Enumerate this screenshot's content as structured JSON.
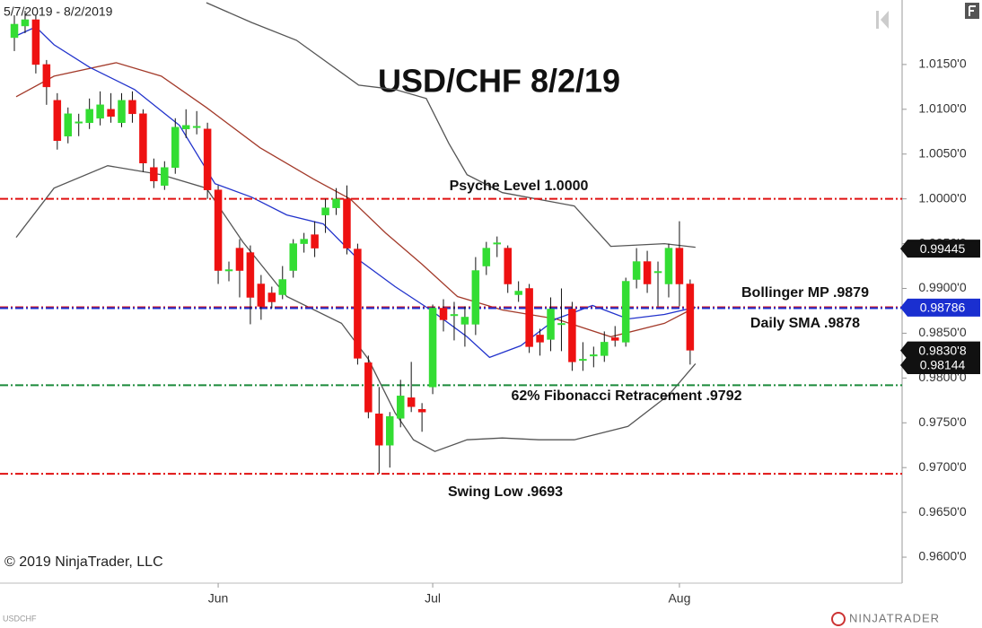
{
  "chart_data": {
    "type": "candlestick",
    "title": "USD/CHF 8/2/19",
    "date_range": "5/7/2019 - 8/2/2019",
    "xlim": [
      -1.34,
      82.76
    ],
    "xticks": [
      {
        "value": 19,
        "label": "Jun"
      },
      {
        "value": 39,
        "label": "Jul"
      },
      {
        "value": 62,
        "label": "Aug"
      }
    ],
    "ylim": [
      0.9571,
      1.0222
    ],
    "yticks": [
      {
        "value": 0.96,
        "label": "0.9600'0"
      },
      {
        "value": 0.965,
        "label": "0.9650'0"
      },
      {
        "value": 0.97,
        "label": "0.9700'0"
      },
      {
        "value": 0.975,
        "label": "0.9750'0"
      },
      {
        "value": 0.98,
        "label": "0.9800'0"
      },
      {
        "value": 0.985,
        "label": "0.9850'0"
      },
      {
        "value": 0.99,
        "label": "0.9900'0"
      },
      {
        "value": 0.995,
        "label": "0.9950'0"
      },
      {
        "value": 1.0,
        "label": "1.0000'0"
      },
      {
        "value": 1.005,
        "label": "1.0050'0"
      },
      {
        "value": 1.01,
        "label": "1.0100'0"
      },
      {
        "value": 1.015,
        "label": "1.0150'0"
      }
    ],
    "up_color": "#33dd33",
    "down_color": "#ee1111",
    "open": [
      1.018,
      1.0193,
      1.02,
      1.015,
      1.011,
      1.007,
      1.0085,
      1.0085,
      1.009,
      1.01,
      1.0085,
      1.011,
      1.0095,
      1.0035,
      1.0015,
      1.0035,
      1.0078,
      1.008,
      1.0078,
      1.001,
      0.992,
      0.9945,
      0.994,
      0.9905,
      0.9895,
      0.9893,
      0.992,
      0.995,
      0.996,
      0.9982,
      0.999,
      1.0,
      0.9944,
      0.9817,
      0.976,
      0.9725,
      0.9755,
      0.9778,
      0.9765,
      0.979,
      0.9878,
      0.987,
      0.986,
      0.986,
      0.9925,
      0.995,
      0.9945,
      0.9893,
      0.99,
      0.9848,
      0.9843,
      0.986,
      0.9877,
      0.982,
      0.9825,
      0.9825,
      0.9845,
      0.984,
      0.991,
      0.993,
      0.9918,
      0.9905,
      0.9945,
      0.9905
    ],
    "high": [
      1.0205,
      1.021,
      1.0205,
      1.0155,
      1.0118,
      1.0102,
      1.0095,
      1.0112,
      1.012,
      1.0118,
      1.0118,
      1.012,
      1.01,
      1.0045,
      1.0042,
      1.009,
      1.01,
      1.0098,
      1.0085,
      1.0015,
      0.993,
      0.9955,
      0.9948,
      0.9915,
      0.9902,
      0.9925,
      0.9955,
      0.9962,
      0.9975,
      1.0,
      1.0012,
      1.0015,
      0.995,
      0.9825,
      0.979,
      0.9762,
      0.9798,
      0.9818,
      0.9772,
      0.9882,
      0.9888,
      0.9885,
      0.988,
      0.9935,
      0.9952,
      0.9958,
      0.9948,
      0.9908,
      0.9905,
      0.9855,
      0.989,
      0.99,
      0.9885,
      0.984,
      0.9835,
      0.9852,
      0.9858,
      0.9912,
      0.9945,
      0.9942,
      0.993,
      0.995,
      0.9975,
      0.991
    ],
    "low": [
      1.0165,
      1.0185,
      1.014,
      1.0105,
      1.0055,
      1.0062,
      1.007,
      1.0078,
      1.0082,
      1.0085,
      1.008,
      1.0085,
      1.003,
      1.0012,
      1.001,
      1.0028,
      1.0068,
      1.0072,
      1.0,
      0.9905,
      0.9908,
      0.989,
      0.986,
      0.9865,
      0.9878,
      0.9888,
      0.9912,
      0.994,
      0.9935,
      0.9962,
      0.9982,
      0.9938,
      0.9815,
      0.9755,
      0.9693,
      0.97,
      0.9745,
      0.9762,
      0.974,
      0.9782,
      0.9852,
      0.9842,
      0.9835,
      0.9848,
      0.9915,
      0.9935,
      0.9895,
      0.9885,
      0.9828,
      0.9825,
      0.983,
      0.983,
      0.9808,
      0.9808,
      0.9812,
      0.9818,
      0.9835,
      0.9835,
      0.99,
      0.9895,
      0.988,
      0.989,
      0.988,
      0.9815
    ],
    "close": [
      1.0195,
      1.02,
      1.015,
      1.0125,
      1.0065,
      1.0095,
      1.0086,
      1.01,
      1.0105,
      1.0092,
      1.011,
      1.0095,
      1.004,
      1.002,
      1.0035,
      1.008,
      1.0082,
      1.0081,
      1.001,
      0.992,
      0.9921,
      0.992,
      0.989,
      0.988,
      0.9885,
      0.991,
      0.995,
      0.9955,
      0.9945,
      0.999,
      1.0,
      0.9945,
      0.9822,
      0.9762,
      0.9725,
      0.9757,
      0.978,
      0.9768,
      0.9762,
      0.9878,
      0.9865,
      0.9871,
      0.9868,
      0.992,
      0.9945,
      0.9951,
      0.9905,
      0.9897,
      0.9835,
      0.984,
      0.9877,
      0.9861,
      0.9818,
      0.9821,
      0.9826,
      0.984,
      0.9842,
      0.9908,
      0.993,
      0.9905,
      0.9919,
      0.9945,
      0.9905,
      0.9831
    ],
    "lines": [
      {
        "color": "#555555",
        "x": [
          17.9,
          22.1,
          26.3,
          32.1,
          35.5,
          38.4,
          40.5,
          42.2,
          45.5,
          52.2,
          55.6,
          60.6,
          63.5
        ],
        "values": [
          1.0219,
          1.0197,
          1.0177,
          1.0127,
          1.0122,
          1.0112,
          1.0062,
          1.0027,
          1.0007,
          0.9992,
          0.9947,
          0.995,
          0.9946
        ]
      },
      {
        "color": "#555555",
        "x": [
          0.17,
          3.7,
          8.7,
          13.7,
          17.9,
          21.3,
          25.4,
          30.5,
          33.0,
          35.5,
          37.2,
          39.2,
          42.2,
          45.5,
          48.9,
          52.2,
          57.2,
          61.0,
          63.5
        ],
        "values": [
          0.9957,
          1.0012,
          1.0037,
          1.0027,
          1.0012,
          0.9952,
          0.9891,
          0.9861,
          0.9821,
          0.9761,
          0.9731,
          0.9718,
          0.9731,
          0.9733,
          0.9731,
          0.9731,
          0.9746,
          0.9781,
          0.9816
        ]
      },
      {
        "color": "#a33a2a",
        "x": [
          0.17,
          3.7,
          9.5,
          13.7,
          17.9,
          22.9,
          27.9,
          31.3,
          34.6,
          38.0,
          41.3,
          45.5,
          50.5,
          55.6,
          60.6,
          63.5
        ],
        "values": [
          1.0114,
          1.0137,
          1.0152,
          1.0137,
          1.0102,
          1.0057,
          1.0022,
          1.0,
          0.9962,
          0.9927,
          0.9891,
          0.9876,
          0.9866,
          0.9846,
          0.9861,
          0.9879
        ]
      },
      {
        "color": "#2233cc",
        "x": [
          0.17,
          2.0,
          3.7,
          7.0,
          11.2,
          15.4,
          18.7,
          22.1,
          25.4,
          28.8,
          32.1,
          35.5,
          38.8,
          42.2,
          44.3,
          47.2,
          50.5,
          53.9,
          57.2,
          60.6,
          63.5
        ],
        "values": [
          1.0182,
          1.0192,
          1.0172,
          1.0147,
          1.0122,
          1.0082,
          1.0017,
          1.0002,
          0.9982,
          0.9972,
          0.9932,
          0.9902,
          0.9876,
          0.9846,
          0.9823,
          0.9836,
          0.9866,
          0.9881,
          0.9866,
          0.9871,
          0.9879
        ]
      }
    ],
    "levels": [
      {
        "label": "Psyche Level 1.0000",
        "value": 1.0,
        "color": "#e01010"
      },
      {
        "label": "Bollinger MP .9879",
        "value": 0.9879,
        "color": "#e01010"
      },
      {
        "label": "Daily SMA .9878",
        "value": 0.9878,
        "color": "#1a2fd0"
      },
      {
        "label": "62% Fibonacci Retracement .9792",
        "value": 0.9792,
        "color": "#1a8a3a"
      },
      {
        "label": "Swing Low .9693",
        "value": 0.9693,
        "color": "#e01010"
      }
    ],
    "price_tags": [
      {
        "value": 0.99445,
        "label": "0.99445",
        "color": "#111111"
      },
      {
        "value": 0.98786,
        "label": "0.98786",
        "color": "#1a2fd0"
      },
      {
        "value": 0.98308,
        "label": "0.9830'8",
        "color": "#111111"
      },
      {
        "value": 0.98144,
        "label": "0.98144",
        "color": "#111111"
      }
    ]
  },
  "copyright": "© 2019 NinjaTrader, LLC",
  "symbol": "USDCHF",
  "logo": "NINJATRADER"
}
